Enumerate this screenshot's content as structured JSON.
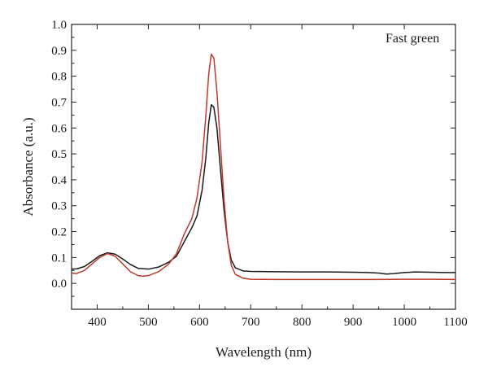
{
  "chart_data": {
    "type": "line",
    "title": "",
    "xlabel": "Wavelength (nm)",
    "ylabel": "Absorbance (a.u.)",
    "annotation": "Fast green",
    "xlim": [
      350,
      1100
    ],
    "ylim": [
      -0.1,
      1.0
    ],
    "x_ticks": [
      400,
      500,
      600,
      700,
      800,
      900,
      1000,
      1100
    ],
    "y_ticks": [
      0.0,
      0.1,
      0.2,
      0.3,
      0.4,
      0.5,
      0.6,
      0.7,
      0.8,
      0.9,
      1.0
    ],
    "x_tick_labels": [
      "400",
      "500",
      "600",
      "700",
      "800",
      "900",
      "1000",
      "1100"
    ],
    "y_tick_labels": [
      "0.0",
      "0.1",
      "0.2",
      "0.3",
      "0.4",
      "0.5",
      "0.6",
      "0.7",
      "0.8",
      "0.9",
      "1.0"
    ],
    "grid": false,
    "legend": "none",
    "series": [
      {
        "color": "#1a1a1a",
        "x": [
          350,
          360,
          375,
          390,
          405,
          420,
          435,
          450,
          465,
          480,
          500,
          520,
          540,
          555,
          570,
          585,
          595,
          605,
          612,
          618,
          623,
          628,
          634,
          640,
          648,
          655,
          662,
          670,
          685,
          700,
          750,
          800,
          850,
          900,
          930,
          950,
          965,
          980,
          1000,
          1020,
          1050,
          1080,
          1100
        ],
        "y": [
          0.055,
          0.056,
          0.065,
          0.085,
          0.107,
          0.118,
          0.113,
          0.094,
          0.073,
          0.058,
          0.055,
          0.063,
          0.082,
          0.105,
          0.16,
          0.215,
          0.26,
          0.36,
          0.48,
          0.62,
          0.69,
          0.68,
          0.6,
          0.46,
          0.28,
          0.16,
          0.09,
          0.06,
          0.048,
          0.046,
          0.045,
          0.044,
          0.044,
          0.043,
          0.042,
          0.04,
          0.036,
          0.038,
          0.042,
          0.044,
          0.043,
          0.042,
          0.042
        ]
      },
      {
        "color": "#c0392b",
        "x": [
          350,
          360,
          375,
          390,
          405,
          420,
          435,
          450,
          465,
          480,
          490,
          500,
          520,
          540,
          555,
          570,
          585,
          595,
          605,
          612,
          618,
          623,
          628,
          634,
          640,
          648,
          655,
          662,
          670,
          685,
          700,
          750,
          800,
          850,
          900,
          950,
          1000,
          1050,
          1100
        ],
        "y": [
          0.04,
          0.038,
          0.05,
          0.075,
          0.1,
          0.115,
          0.105,
          0.075,
          0.045,
          0.03,
          0.028,
          0.03,
          0.045,
          0.075,
          0.115,
          0.19,
          0.25,
          0.33,
          0.47,
          0.64,
          0.81,
          0.885,
          0.87,
          0.74,
          0.56,
          0.32,
          0.16,
          0.07,
          0.035,
          0.02,
          0.016,
          0.015,
          0.015,
          0.015,
          0.015,
          0.015,
          0.016,
          0.016,
          0.015
        ]
      }
    ]
  }
}
